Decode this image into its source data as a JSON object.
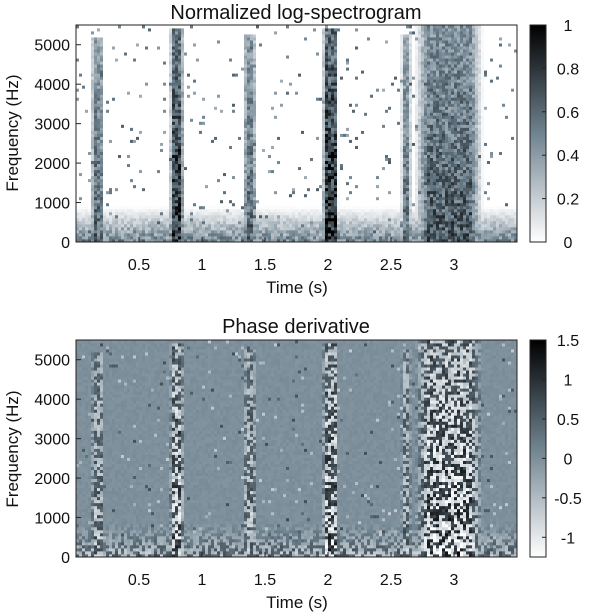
{
  "chart_data": [
    {
      "type": "heatmap",
      "title": "Normalized log-spectrogram",
      "xlabel": "Time (s)",
      "ylabel": "Frequency (Hz)",
      "xlim": [
        0,
        3.5
      ],
      "ylim": [
        0,
        5500
      ],
      "xticks": [
        0.5,
        1,
        1.5,
        2,
        2.5,
        3
      ],
      "xtick_labels": [
        "0.5",
        "1",
        "1.5",
        "2",
        "2.5",
        "3"
      ],
      "yticks": [
        0,
        1000,
        2000,
        3000,
        4000,
        5000
      ],
      "ytick_labels": [
        "0",
        "1000",
        "2000",
        "3000",
        "4000",
        "5000"
      ],
      "colorbar": {
        "range": [
          0,
          1
        ],
        "ticks": [
          0,
          0.2,
          0.4,
          0.6,
          0.8,
          1
        ],
        "tick_labels": [
          "0",
          "0.2",
          "0.4",
          "0.6",
          "0.8",
          "1"
        ],
        "colors": [
          "#ffffff",
          "#6f8390",
          "#000000"
        ]
      },
      "background_value": 0.05,
      "bursts": [
        {
          "t": 0.17,
          "width": 0.06,
          "f_max": 5200,
          "intensity": 0.55
        },
        {
          "t": 0.8,
          "width": 0.07,
          "f_max": 5400,
          "intensity": 0.75
        },
        {
          "t": 1.38,
          "width": 0.06,
          "f_max": 5300,
          "intensity": 0.55
        },
        {
          "t": 2.02,
          "width": 0.08,
          "f_max": 5400,
          "intensity": 0.8
        },
        {
          "t": 2.62,
          "width": 0.05,
          "f_max": 5300,
          "intensity": 0.5
        },
        {
          "t": 2.96,
          "width": 0.34,
          "f_max": 5500,
          "intensity": 0.6
        }
      ],
      "low_band": {
        "f_max": 900,
        "intensity": 0.45
      }
    },
    {
      "type": "heatmap",
      "title": "Phase derivative",
      "xlabel": "Time (s)",
      "ylabel": "Frequency (Hz)",
      "xlim": [
        0,
        3.5
      ],
      "ylim": [
        0,
        5500
      ],
      "xticks": [
        0.5,
        1,
        1.5,
        2,
        2.5,
        3
      ],
      "xtick_labels": [
        "0.5",
        "1",
        "1.5",
        "2",
        "2.5",
        "3"
      ],
      "yticks": [
        0,
        1000,
        2000,
        3000,
        4000,
        5000
      ],
      "ytick_labels": [
        "0",
        "1000",
        "2000",
        "3000",
        "4000",
        "5000"
      ],
      "colorbar": {
        "range": [
          -1.25,
          1.5
        ],
        "ticks": [
          -1,
          -0.5,
          0,
          0.5,
          1,
          1.5
        ],
        "tick_labels": [
          "-1",
          "-0.5",
          "0",
          "0.5",
          "1",
          "1.5"
        ],
        "colors": [
          "#ffffff",
          "#6f8390",
          "#000000"
        ]
      },
      "background_value": 0.0,
      "bursts": [
        {
          "t": 0.17,
          "width": 0.06,
          "f_max": 5200,
          "intensity": 0.6
        },
        {
          "t": 0.8,
          "width": 0.07,
          "f_max": 5400,
          "intensity": 0.8
        },
        {
          "t": 1.38,
          "width": 0.06,
          "f_max": 5300,
          "intensity": 0.6
        },
        {
          "t": 2.02,
          "width": 0.08,
          "f_max": 5400,
          "intensity": 0.85
        },
        {
          "t": 2.62,
          "width": 0.05,
          "f_max": 5300,
          "intensity": 0.55
        },
        {
          "t": 2.96,
          "width": 0.34,
          "f_max": 5500,
          "intensity": 0.9
        }
      ],
      "low_band": {
        "f_max": 900,
        "intensity": 0.5
      }
    }
  ]
}
